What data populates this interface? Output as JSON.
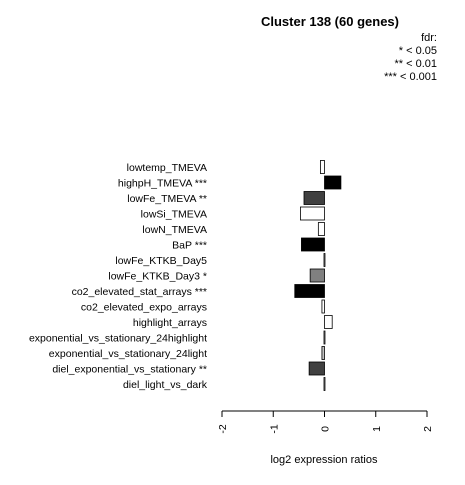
{
  "chart_data": {
    "type": "bar",
    "orientation": "horizontal",
    "title": "Cluster 138 (60 genes)",
    "xlabel": "log2 expression ratios",
    "ylabel": "",
    "xlim": [
      -2,
      2
    ],
    "xticks": [
      "-2",
      "-1",
      "0",
      "1",
      "2"
    ],
    "legend": {
      "placement": "top-right",
      "title": "fdr:",
      "entries": [
        "* < 0.05",
        "** < 0.01",
        "*** < 0.001"
      ]
    },
    "categories": [
      "lowtemp_TMEVA",
      "highpH_TMEVA ***",
      "lowFe_TMEVA **",
      "lowSi_TMEVA",
      "lowN_TMEVA",
      "BaP ***",
      "lowFe_KTKB_Day5",
      "lowFe_KTKB_Day3 *",
      "co2_elevated_stat_arrays ***",
      "co2_elevated_expo_arrays",
      "highlight_arrays",
      "exponential_vs_stationary_24highlight",
      "exponential_vs_stationary_24light",
      "diel_exponential_vs_stationary **",
      "diel_light_vs_dark"
    ],
    "values": [
      -0.08,
      0.32,
      -0.4,
      -0.47,
      -0.12,
      -0.45,
      -0.01,
      -0.28,
      -0.58,
      -0.05,
      0.15,
      -0.01,
      -0.05,
      -0.3,
      -0.01
    ],
    "fill_colors": [
      "#ffffff",
      "#000000",
      "#404040",
      "#ffffff",
      "#ffffff",
      "#000000",
      "#ffffff",
      "#808080",
      "#000000",
      "#ffffff",
      "#ffffff",
      "#ffffff",
      "#c0c0c0",
      "#404040",
      "#ffffff"
    ]
  }
}
